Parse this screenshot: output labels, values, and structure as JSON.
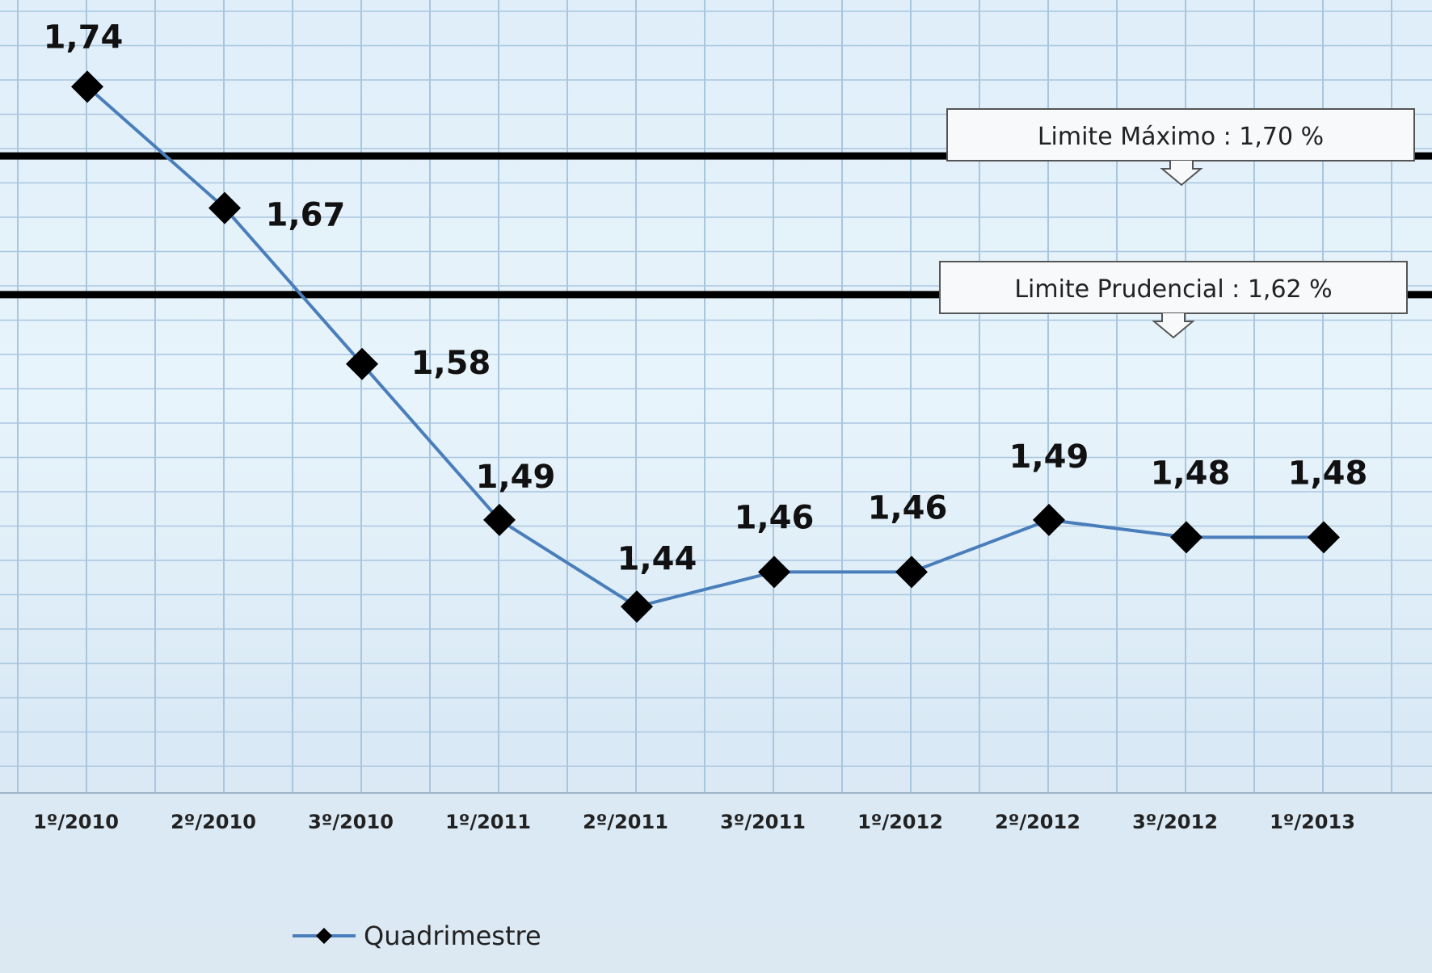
{
  "chart_data": {
    "type": "line",
    "categories": [
      "1º/2010",
      "2º/2010",
      "3º/2010",
      "1º/2011",
      "2º/2011",
      "3º/2011",
      "1º/2012",
      "2º/2012",
      "3º/2012",
      "1º/2013"
    ],
    "series": [
      {
        "name": "Quadrimestre",
        "values": [
          1.74,
          1.67,
          1.58,
          1.49,
          1.44,
          1.46,
          1.46,
          1.49,
          1.48,
          1.48
        ],
        "labels": [
          "1,74",
          "1,67",
          "1,58",
          "1,49",
          "1,44",
          "1,46",
          "1,46",
          "1,49",
          "1,48",
          "1,48"
        ],
        "color": "#4a7ebb"
      }
    ],
    "reference_lines": [
      {
        "value": 1.7,
        "label": "Limite Máximo  :  1,70 %"
      },
      {
        "value": 1.62,
        "label": "Limite Prudencial  :  1,62 %"
      }
    ],
    "ylim": [
      1.3325,
      1.79
    ],
    "grid": true,
    "legend": "bottom-left"
  },
  "colors": {
    "series_line": "#4a7ebb",
    "marker": "#000000",
    "reference_line": "#000000",
    "grid": "#a9c6df"
  }
}
